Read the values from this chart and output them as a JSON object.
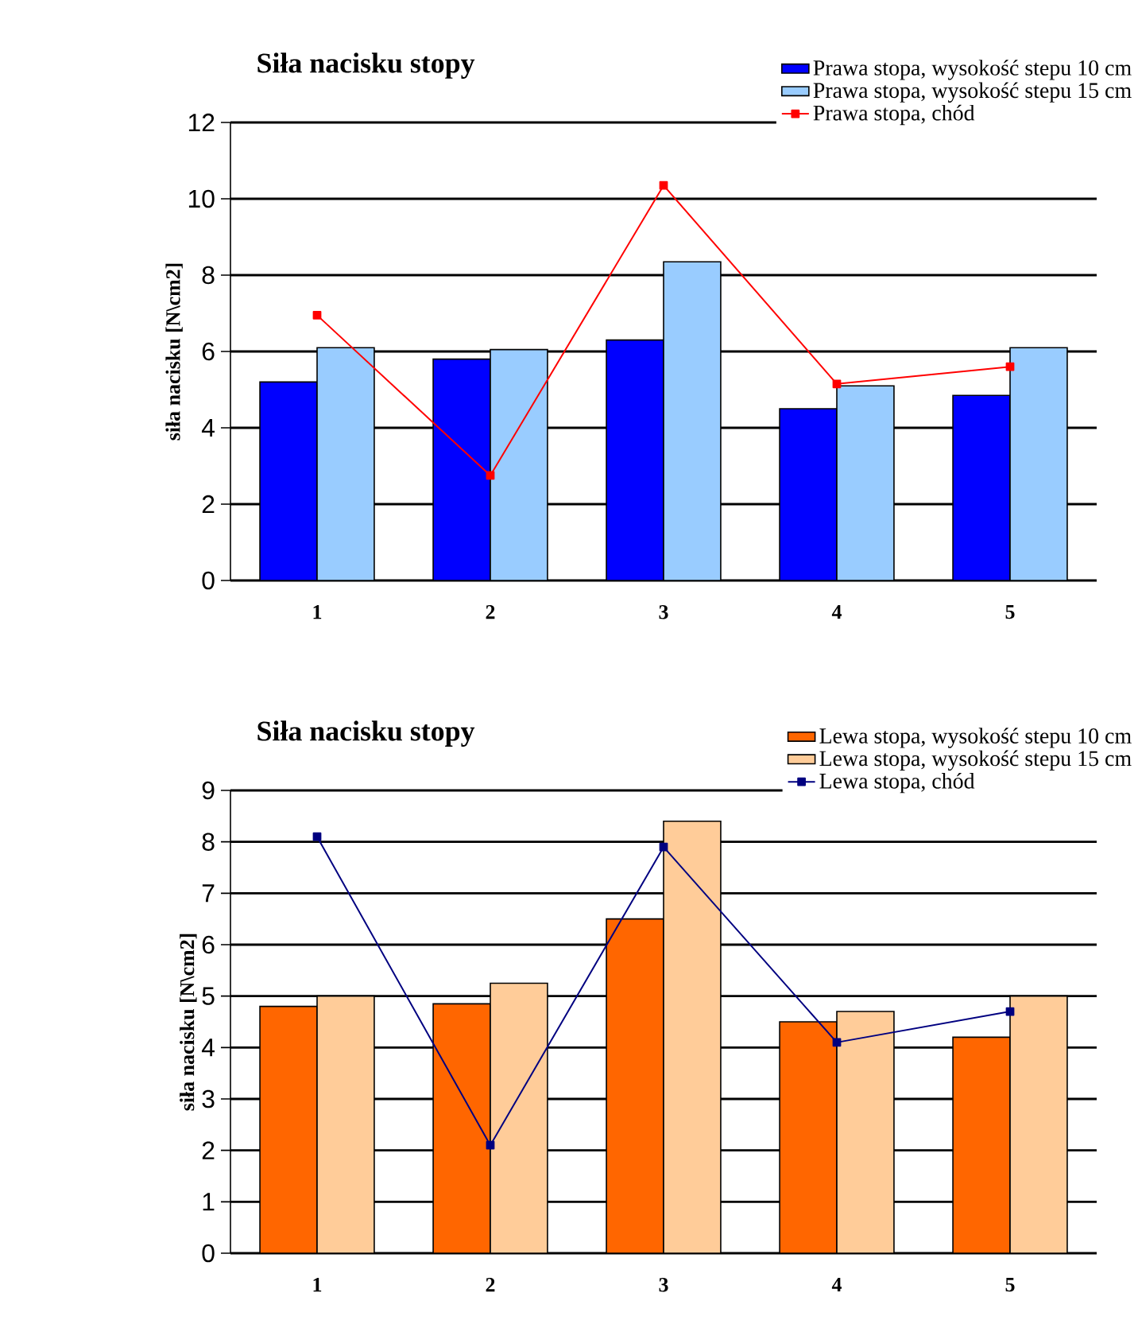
{
  "chart_data": [
    {
      "type": "bar",
      "title": "Siła nacisku stopy",
      "ylabel": "siła nacisku [N\\cm2]",
      "categories": [
        "1",
        "2",
        "3",
        "4",
        "5"
      ],
      "series": [
        {
          "name": "Prawa stopa, wysokość stepu 10 cm",
          "color": "#0000ff",
          "values": [
            5.2,
            5.8,
            6.3,
            4.5,
            4.85
          ]
        },
        {
          "name": "Prawa stopa, wysokość stepu 15 cm",
          "color": "#99ccff",
          "values": [
            6.1,
            6.05,
            8.35,
            5.1,
            6.1
          ]
        },
        {
          "name": "Prawa stopa, chód",
          "type": "line",
          "color": "#ff0000",
          "marker": "square",
          "values": [
            6.95,
            2.75,
            10.35,
            5.15,
            5.6
          ]
        }
      ],
      "ylim": [
        0,
        12
      ],
      "yticks": [
        0,
        2,
        4,
        6,
        8,
        10,
        12
      ],
      "grid": "y",
      "legend": "top right"
    },
    {
      "type": "bar",
      "title": "Siła nacisku stopy",
      "ylabel": "siła nacisku [N\\cm2]",
      "categories": [
        "1",
        "2",
        "3",
        "4",
        "5"
      ],
      "series": [
        {
          "name": "Lewa stopa, wysokość stepu 10 cm",
          "color": "#ff6600",
          "values": [
            4.8,
            4.85,
            6.5,
            4.5,
            4.2
          ]
        },
        {
          "name": "Lewa stopa, wysokość stepu 15 cm",
          "color": "#ffcc99",
          "values": [
            5.0,
            5.25,
            8.4,
            4.7,
            5.0
          ]
        },
        {
          "name": "Lewa stopa, chód",
          "type": "line",
          "color": "#000080",
          "marker": "square",
          "values": [
            8.1,
            2.1,
            7.9,
            4.1,
            4.7
          ]
        }
      ],
      "ylim": [
        0,
        9
      ],
      "yticks": [
        0,
        1,
        2,
        3,
        4,
        5,
        6,
        7,
        8,
        9
      ],
      "grid": "y",
      "legend": "top right"
    }
  ]
}
